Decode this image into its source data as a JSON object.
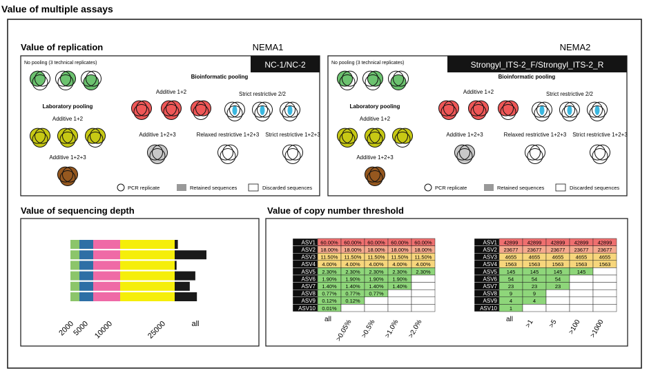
{
  "figure": {
    "title": "Value of multiple assays"
  },
  "replication": {
    "title": "Value of replication",
    "panels": [
      {
        "marker": "NEMA1",
        "primer": "NC-1/NC-2",
        "no_pooling": "No pooling (3 technical replicates)",
        "lab_pooling": "Laboratory pooling",
        "bio_pooling": "Bioinformatic pooling",
        "lab_add12": "Additive 1+2",
        "lab_add123": "Additive 1+2+3",
        "bio_add12": "Additive 1+2",
        "bio_strict22": "Strict restrictive 2/2",
        "bio_add123": "Additive 1+2+3",
        "bio_relaxed123": "Relaxed restrictive 1+2+3",
        "bio_strict123": "Strict restrictive 1+2+3",
        "legend": {
          "pcr": "PCR replicate",
          "retained": "Retained sequences",
          "discarded": "Discarded sequences"
        }
      },
      {
        "marker": "NEMA2",
        "primer": "Strongyl_ITS-2_F/Strongyl_ITS-2_R",
        "no_pooling": "No pooling (3 technical replicates)",
        "lab_pooling": "Laboratory pooling",
        "bio_pooling": "Bioinformatic pooling",
        "lab_add12": "Additive 1+2",
        "lab_add123": "Additive 1+2+3",
        "bio_add12": "Additive 1+2",
        "bio_strict22": "Strict restrictive 2/2",
        "bio_add123": "Additive 1+2+3",
        "bio_relaxed123": "Relaxed restrictive 1+2+3",
        "bio_strict123": "Strict restrictive 1+2+3",
        "legend": {
          "pcr": "PCR replicate",
          "retained": "Retained sequences",
          "discarded": "Discarded sequences"
        }
      }
    ],
    "colors": {
      "green": "#6cc26f",
      "red": "#ef5757",
      "blue": "#3bb8e0",
      "yellow": "#c7c914",
      "gray": "#c8c8c8",
      "brown": "#96581f"
    }
  },
  "sequencing_depth": {
    "title": "Value of sequencing depth",
    "tick_labels": [
      "2000",
      "5000",
      "10000",
      "25000",
      "all"
    ],
    "segment_colors": [
      "#8cc56a",
      "#2e6fa5",
      "#ef6aa6",
      "#f5ee0a",
      "#1a1a1a"
    ],
    "rows": [
      {
        "all": 27000
      },
      {
        "all": 45000
      },
      {
        "all": 26200
      },
      {
        "all": 38000
      },
      {
        "all": 34500
      },
      {
        "all": 39000
      }
    ]
  },
  "copy_number": {
    "title": "Value of copy number threshold",
    "asv_labels": [
      "ASV1",
      "ASV2",
      "ASV3",
      "ASV4",
      "ASV5",
      "ASV6",
      "ASV7",
      "ASV8",
      "ASV9",
      "ASV10"
    ],
    "row_colors": [
      "#ef6f6f",
      "#f5a98e",
      "#f7d67c",
      "#f7d67c",
      "#8ed67a",
      "#8ed67a",
      "#8ed67a",
      "#8ed67a",
      "#8ed67a",
      "#8ed67a"
    ],
    "percent_table": {
      "columns": [
        "all",
        ">0.05%",
        ">0.5%",
        ">1.0%",
        ">2.0%"
      ],
      "rows": [
        [
          "60.00%",
          "60.00%",
          "60.00%",
          "60.00%",
          "60.00%"
        ],
        [
          "18.00%",
          "18.00%",
          "18.00%",
          "18.00%",
          "18.00%"
        ],
        [
          "11.50%",
          "11.50%",
          "11.50%",
          "11.50%",
          "11.50%"
        ],
        [
          "4.00%",
          "4.00%",
          "4.00%",
          "4.00%",
          "4.00%"
        ],
        [
          "2.30%",
          "2.30%",
          "2.30%",
          "2.30%",
          "2.30%"
        ],
        [
          "1.90%",
          "1.90%",
          "1.90%",
          "1.90%",
          ""
        ],
        [
          "1.40%",
          "1.40%",
          "1.40%",
          "1.40%",
          ""
        ],
        [
          "0.77%",
          "0.77%",
          "0.77%",
          "",
          ""
        ],
        [
          "0.12%",
          "0.12%",
          "",
          "",
          ""
        ],
        [
          "0.01%",
          "",
          "",
          "",
          ""
        ]
      ]
    },
    "count_table": {
      "columns": [
        "all",
        ">1",
        ">5",
        ">100",
        ">1000"
      ],
      "rows": [
        [
          "42899",
          "42899",
          "42899",
          "42899",
          "42899"
        ],
        [
          "23677",
          "23677",
          "23677",
          "23677",
          "23677"
        ],
        [
          "4655",
          "4655",
          "4655",
          "4655",
          "4655"
        ],
        [
          "1563",
          "1563",
          "1563",
          "1563",
          "1563"
        ],
        [
          "145",
          "145",
          "145",
          "145",
          ""
        ],
        [
          "54",
          "54",
          "54",
          "",
          ""
        ],
        [
          "23",
          "23",
          "23",
          "",
          ""
        ],
        [
          "9",
          "9",
          "",
          "",
          ""
        ],
        [
          "4",
          "4",
          "",
          "",
          ""
        ],
        [
          "1",
          "",
          "",
          "",
          ""
        ]
      ]
    }
  }
}
